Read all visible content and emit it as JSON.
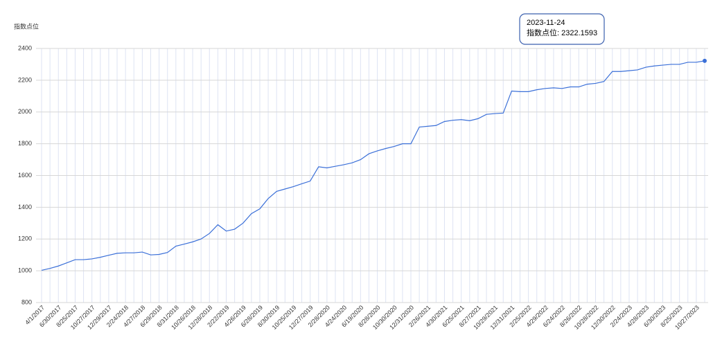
{
  "chart_data": {
    "type": "line",
    "y_label": "指数点位",
    "categories": [
      "4/1/2017",
      null,
      "6/30/2017",
      null,
      "8/25/2017",
      null,
      "10/27/2017",
      null,
      "12/29/2017",
      null,
      "2/24/2018",
      null,
      "4/27/2018",
      null,
      "6/29/2018",
      null,
      "8/31/2018",
      null,
      "10/26/2018",
      null,
      "12/28/2018",
      null,
      "2/22/2019",
      null,
      "4/26/2019",
      null,
      "6/28/2019",
      null,
      "8/30/2019",
      null,
      "10/25/2019",
      null,
      "12/27/2019",
      null,
      "2/28/2020",
      null,
      "4/24/2020",
      null,
      "6/19/2020",
      null,
      "8/28/2020",
      null,
      "10/30/2020",
      null,
      "12/31/2020",
      null,
      "2/26/2021",
      null,
      "4/30/2021",
      null,
      "6/25/2021",
      null,
      "8/27/2021",
      null,
      "10/29/2021",
      null,
      "12/31/2021",
      null,
      "2/25/2022",
      null,
      "4/29/2022",
      null,
      "6/24/2022",
      null,
      "8/26/2022",
      null,
      "10/28/2022",
      null,
      "12/30/2022",
      null,
      "2/24/2023",
      null,
      "4/28/2023",
      null,
      "6/30/2023",
      null,
      "8/25/2023",
      null,
      "10/27/2023",
      null
    ],
    "series": [
      {
        "name": "指数点位",
        "color": "#3a6fd8",
        "values": [
          1003,
          1015,
          1030,
          1050,
          1070,
          1070,
          1075,
          1085,
          1098,
          1110,
          1113,
          1113,
          1118,
          1100,
          1103,
          1115,
          1155,
          1168,
          1182,
          1200,
          1235,
          1290,
          1250,
          1262,
          1300,
          1360,
          1390,
          1455,
          1500,
          1515,
          1530,
          1548,
          1565,
          1655,
          1648,
          1658,
          1668,
          1680,
          1700,
          1737,
          1755,
          1770,
          1783,
          1800,
          1800,
          1905,
          1910,
          1915,
          1940,
          1948,
          1952,
          1945,
          1958,
          1985,
          1990,
          1993,
          2132,
          2128,
          2128,
          2140,
          2148,
          2152,
          2148,
          2158,
          2158,
          2175,
          2180,
          2192,
          2255,
          2255,
          2260,
          2265,
          2282,
          2290,
          2295,
          2300,
          2300,
          2313,
          2313,
          2322.1593
        ]
      }
    ],
    "ylim": [
      800,
      2400
    ],
    "yticks": [
      800,
      1000,
      1200,
      1400,
      1600,
      1800,
      2000,
      2200,
      2400
    ],
    "grid": true,
    "tooltip": {
      "title": "2023-11-24",
      "text": "指数点位: 2322.1593"
    }
  }
}
